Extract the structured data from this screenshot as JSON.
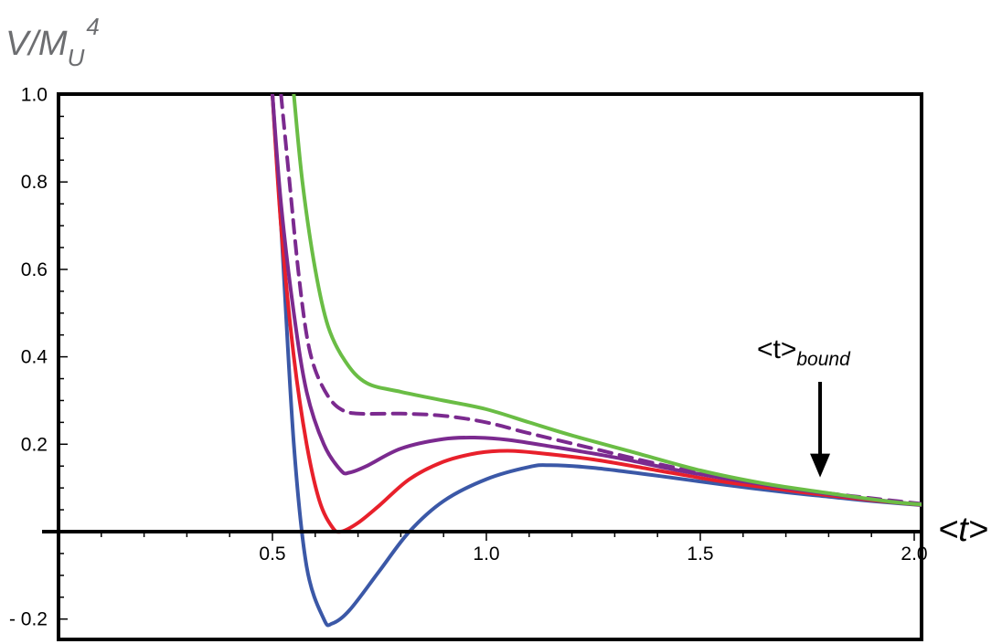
{
  "chart_data": {
    "type": "line",
    "title": "",
    "ylabel": {
      "main": "V/M",
      "sub": "U",
      "sup": "4"
    },
    "xlabel": "<t>",
    "xlim": [
      0,
      2.05
    ],
    "ylim": [
      -0.22,
      1.0
    ],
    "x_ticks": [
      {
        "value": 0.5,
        "label": "0.5"
      },
      {
        "value": 1.0,
        "label": "1.0"
      },
      {
        "value": 1.5,
        "label": "1.5"
      },
      {
        "value": 2.0,
        "label": "2.0"
      }
    ],
    "y_ticks": [
      {
        "value": 1.0,
        "label": "1.0"
      },
      {
        "value": 0.8,
        "label": "0.8"
      },
      {
        "value": 0.6,
        "label": "0.6"
      },
      {
        "value": 0.4,
        "label": "0.4"
      },
      {
        "value": 0.2,
        "label": "0.2"
      },
      {
        "value": -0.2,
        "label": "- 0.2"
      }
    ],
    "grid": false,
    "series": [
      {
        "color": "#3b58a7",
        "dash": false,
        "points": [
          [
            0.5,
            1.0
          ],
          [
            0.52,
            0.7
          ],
          [
            0.55,
            0.2
          ],
          [
            0.58,
            -0.08
          ],
          [
            0.62,
            -0.2
          ],
          [
            0.64,
            -0.21
          ],
          [
            0.68,
            -0.18
          ],
          [
            0.75,
            -0.09
          ],
          [
            0.82,
            0.0
          ],
          [
            0.9,
            0.07
          ],
          [
            1.0,
            0.12
          ],
          [
            1.1,
            0.148
          ],
          [
            1.15,
            0.152
          ],
          [
            1.25,
            0.146
          ],
          [
            1.4,
            0.128
          ],
          [
            1.55,
            0.108
          ],
          [
            1.7,
            0.09
          ],
          [
            1.8,
            0.08
          ],
          [
            1.9,
            0.07
          ],
          [
            2.05,
            0.058
          ]
        ]
      },
      {
        "color": "#e8202b",
        "dash": false,
        "points": [
          [
            0.5,
            1.0
          ],
          [
            0.52,
            0.7
          ],
          [
            0.55,
            0.4
          ],
          [
            0.58,
            0.2
          ],
          [
            0.61,
            0.07
          ],
          [
            0.64,
            0.01
          ],
          [
            0.66,
            0.0
          ],
          [
            0.7,
            0.02
          ],
          [
            0.75,
            0.06
          ],
          [
            0.82,
            0.12
          ],
          [
            0.9,
            0.16
          ],
          [
            0.98,
            0.18
          ],
          [
            1.05,
            0.185
          ],
          [
            1.12,
            0.18
          ],
          [
            1.25,
            0.165
          ],
          [
            1.4,
            0.14
          ],
          [
            1.55,
            0.115
          ],
          [
            1.7,
            0.095
          ],
          [
            1.8,
            0.083
          ],
          [
            1.9,
            0.072
          ],
          [
            2.05,
            0.058
          ]
        ]
      },
      {
        "color": "#7b2a8f",
        "dash": false,
        "points": [
          [
            0.5,
            1.0
          ],
          [
            0.52,
            0.75
          ],
          [
            0.55,
            0.5
          ],
          [
            0.58,
            0.32
          ],
          [
            0.62,
            0.2
          ],
          [
            0.66,
            0.14
          ],
          [
            0.68,
            0.135
          ],
          [
            0.72,
            0.15
          ],
          [
            0.8,
            0.19
          ],
          [
            0.9,
            0.212
          ],
          [
            0.98,
            0.215
          ],
          [
            1.05,
            0.21
          ],
          [
            1.15,
            0.195
          ],
          [
            1.3,
            0.17
          ],
          [
            1.45,
            0.14
          ],
          [
            1.6,
            0.115
          ],
          [
            1.75,
            0.093
          ],
          [
            1.9,
            0.074
          ],
          [
            2.05,
            0.058
          ]
        ]
      },
      {
        "color": "#7b2a8f",
        "dash": true,
        "points": [
          [
            0.52,
            1.0
          ],
          [
            0.54,
            0.8
          ],
          [
            0.56,
            0.6
          ],
          [
            0.58,
            0.45
          ],
          [
            0.6,
            0.37
          ],
          [
            0.63,
            0.31
          ],
          [
            0.66,
            0.28
          ],
          [
            0.7,
            0.27
          ],
          [
            0.8,
            0.27
          ],
          [
            0.9,
            0.265
          ],
          [
            1.0,
            0.25
          ],
          [
            1.1,
            0.225
          ],
          [
            1.25,
            0.19
          ],
          [
            1.4,
            0.155
          ],
          [
            1.55,
            0.125
          ],
          [
            1.7,
            0.1
          ],
          [
            1.85,
            0.082
          ],
          [
            2.05,
            0.06
          ]
        ]
      },
      {
        "color": "#6abd45",
        "dash": false,
        "points": [
          [
            0.55,
            1.0
          ],
          [
            0.57,
            0.8
          ],
          [
            0.6,
            0.6
          ],
          [
            0.63,
            0.47
          ],
          [
            0.67,
            0.39
          ],
          [
            0.72,
            0.34
          ],
          [
            0.8,
            0.32
          ],
          [
            0.9,
            0.3
          ],
          [
            1.0,
            0.28
          ],
          [
            1.1,
            0.25
          ],
          [
            1.2,
            0.22
          ],
          [
            1.35,
            0.18
          ],
          [
            1.5,
            0.14
          ],
          [
            1.65,
            0.11
          ],
          [
            1.8,
            0.088
          ],
          [
            1.95,
            0.068
          ],
          [
            2.05,
            0.06
          ]
        ]
      }
    ],
    "annotations": [
      {
        "text_main": "<t>",
        "text_sub": "bound",
        "arrow_x": 1.78,
        "arrow_from_y": 0.34,
        "arrow_to_y": 0.12
      }
    ]
  }
}
